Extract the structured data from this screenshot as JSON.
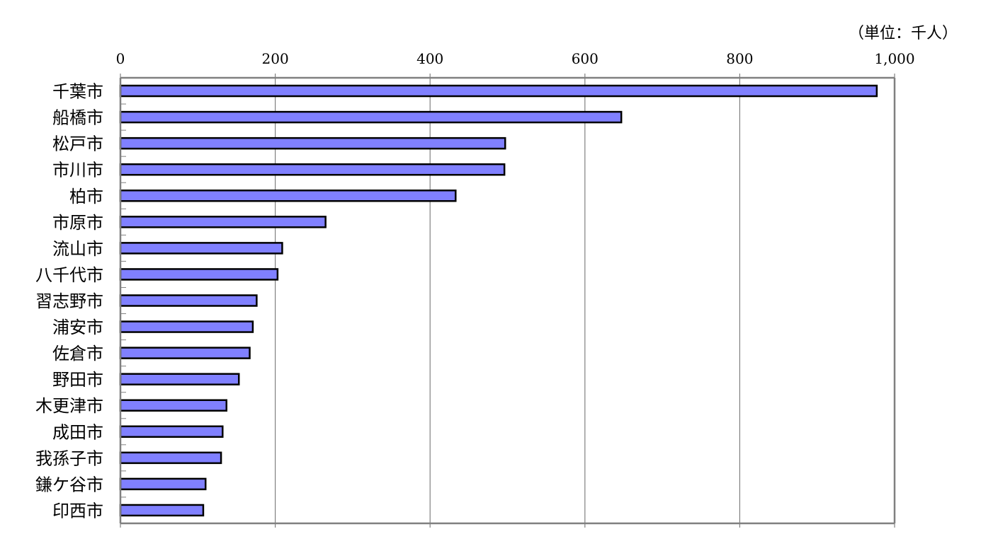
{
  "chart_data": {
    "type": "bar",
    "orientation": "horizontal",
    "unit": "（単位：千人）",
    "categories": [
      "千葉市",
      "船橋市",
      "松戸市",
      "市川市",
      "柏市",
      "市原市",
      "流山市",
      "八千代市",
      "習志野市",
      "浦安市",
      "佐倉市",
      "野田市",
      "木更津市",
      "成田市",
      "我孫子市",
      "鎌ケ谷市",
      "印西市"
    ],
    "values": [
      977,
      647,
      497,
      496,
      433,
      265,
      209,
      203,
      176,
      171,
      167,
      153,
      137,
      132,
      130,
      110,
      107
    ],
    "xlim": [
      0,
      1000
    ],
    "ticks": [
      0,
      200,
      400,
      600,
      800,
      1000
    ],
    "tick_labels": [
      "0",
      "200",
      "400",
      "600",
      "800",
      "1,000"
    ],
    "grid": true,
    "legend": "none",
    "colors": {
      "bar_fill": "#8080ff",
      "bar_stroke": "#000000",
      "grid": "#808080",
      "axis": "#808080"
    }
  }
}
